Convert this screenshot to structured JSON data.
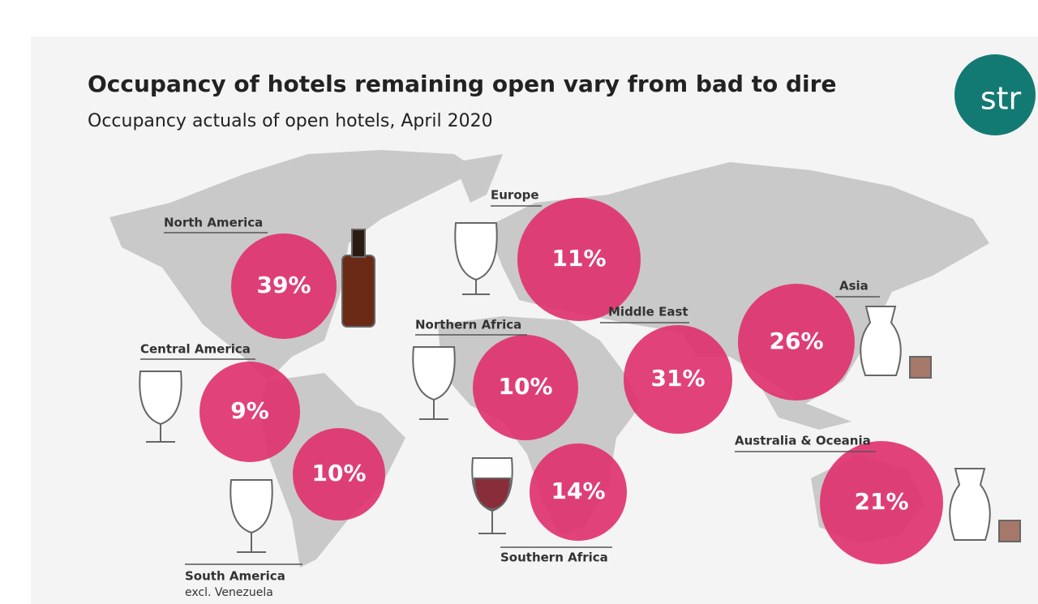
{
  "chart_data": {
    "type": "map",
    "title": "Occupancy of hotels remaining open vary from bad to dire",
    "subtitle": "Occupancy actuals of open hotels, April 2020",
    "logo": "str",
    "categories": [
      "North America",
      "Central America",
      "South America",
      "Europe",
      "Northern Africa",
      "Southern Africa",
      "Middle East",
      "Asia",
      "Australia & Oceania"
    ],
    "values": [
      39,
      9,
      10,
      11,
      10,
      14,
      31,
      26,
      21
    ],
    "value_labels": [
      "39%",
      "9%",
      "10%",
      "11%",
      "10%",
      "14%",
      "31%",
      "26%",
      "21%"
    ],
    "footnote": "excl. Venezuela",
    "color": "#e0326f"
  }
}
